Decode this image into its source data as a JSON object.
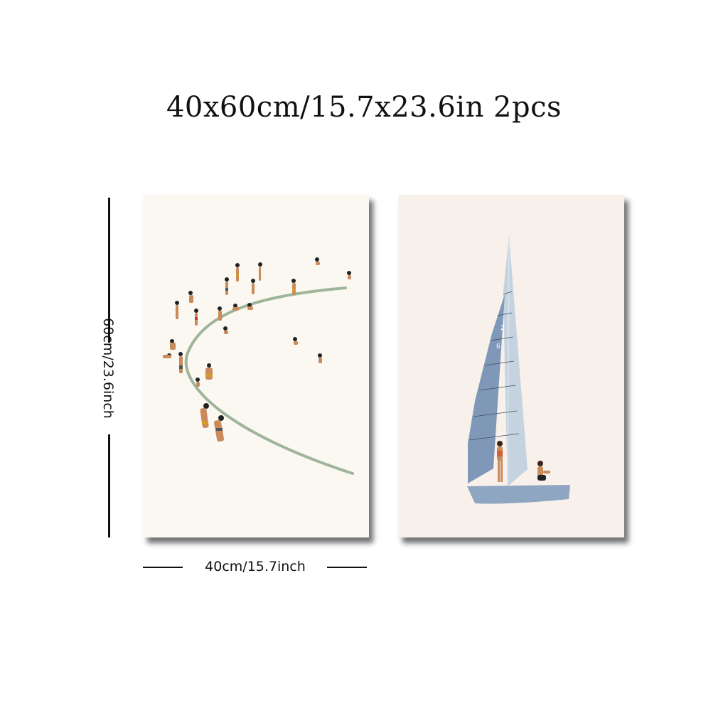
{
  "title": "40x60cm/15.7x23.6in 2pcs",
  "dimensions": {
    "height_label": "60cm/23.6inch",
    "width_label": "40cm/15.7inch"
  },
  "panels": [
    {
      "id": "beach",
      "content": "beach-scene-illustration"
    },
    {
      "id": "sailboat",
      "content": "sailboat-illustration",
      "sail_numbers": [
        "2",
        "6"
      ]
    }
  ],
  "colors": {
    "shoreline": "#9fb59a",
    "sail_dark": "#7f98b7",
    "sail_light": "#c5d3e0",
    "hull": "#8ea6c2",
    "skin": "#c98a5c"
  }
}
